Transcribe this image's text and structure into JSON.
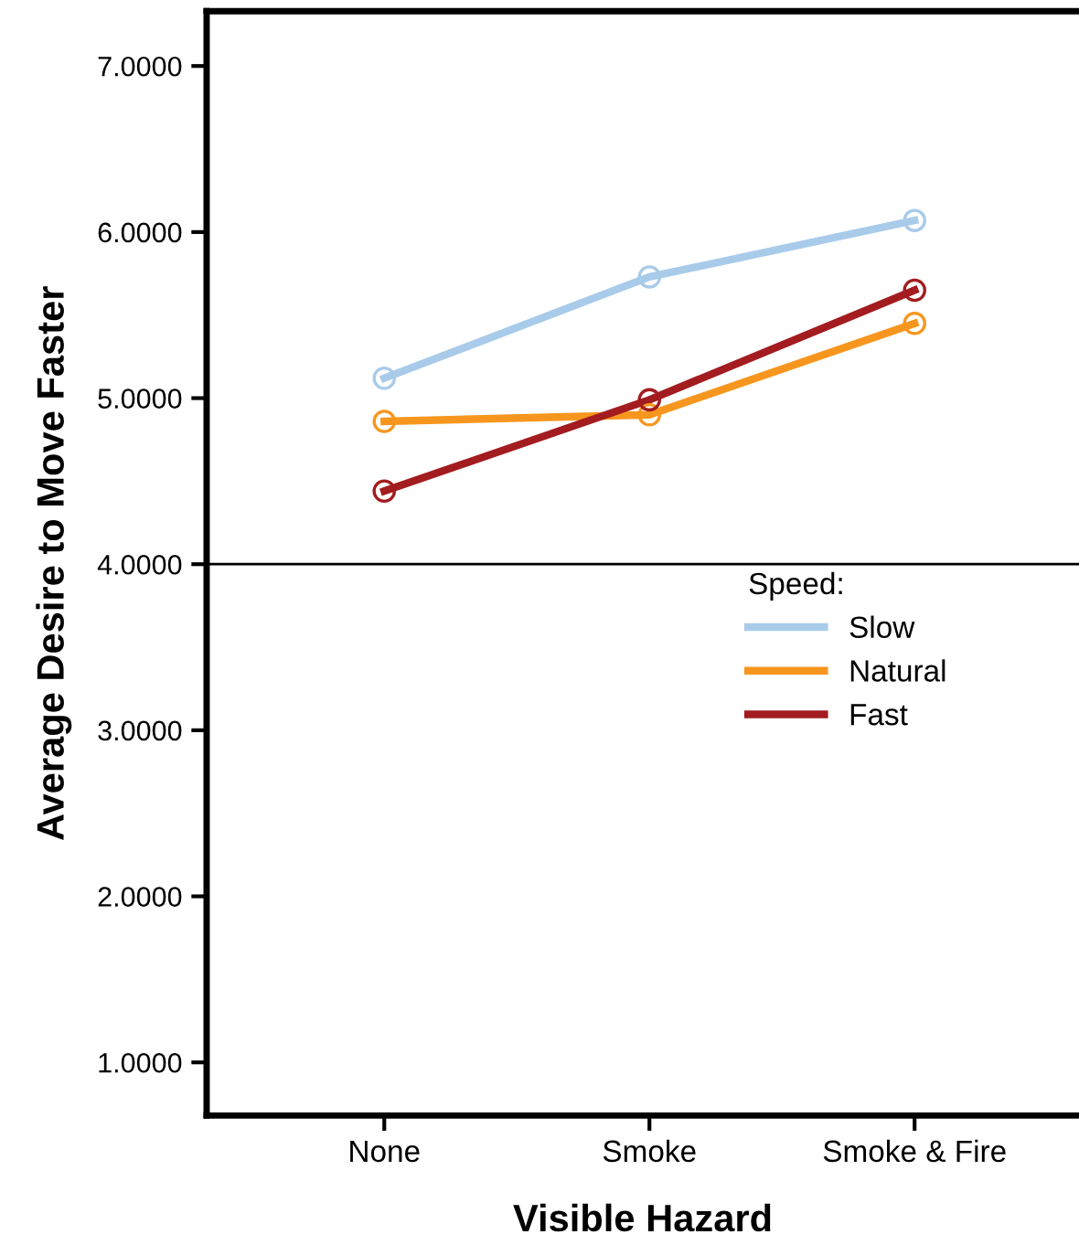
{
  "chart_data": {
    "type": "line",
    "xlabel": "Visible Hazard",
    "ylabel": "Average Desire to Move Faster",
    "legend_title": "Speed:",
    "categories": [
      "None",
      "Smoke",
      "Smoke & Fire"
    ],
    "series": [
      {
        "name": "Slow",
        "color": "#a9cbea",
        "values": [
          5.12,
          5.73,
          6.07
        ]
      },
      {
        "name": "Natural",
        "color": "#f7961e",
        "values": [
          4.86,
          4.9,
          5.45
        ]
      },
      {
        "name": "Fast",
        "color": "#a31c1f",
        "values": [
          4.44,
          4.99,
          5.65
        ]
      }
    ],
    "ylim": [
      0.68,
      7.33
    ],
    "yticks": [
      {
        "value": 1,
        "label": "1.0000"
      },
      {
        "value": 2,
        "label": "2.0000"
      },
      {
        "value": 3,
        "label": "3.0000"
      },
      {
        "value": 4,
        "label": "4.0000"
      },
      {
        "value": 5,
        "label": "5.0000"
      },
      {
        "value": 6,
        "label": "6.0000"
      },
      {
        "value": 7,
        "label": "7.0000"
      }
    ],
    "ref_lines": [
      {
        "axis": "y",
        "value": 4,
        "color": "#000000"
      }
    ],
    "marker": "circle",
    "line_style": "solid",
    "grid": false,
    "legend": "right"
  }
}
